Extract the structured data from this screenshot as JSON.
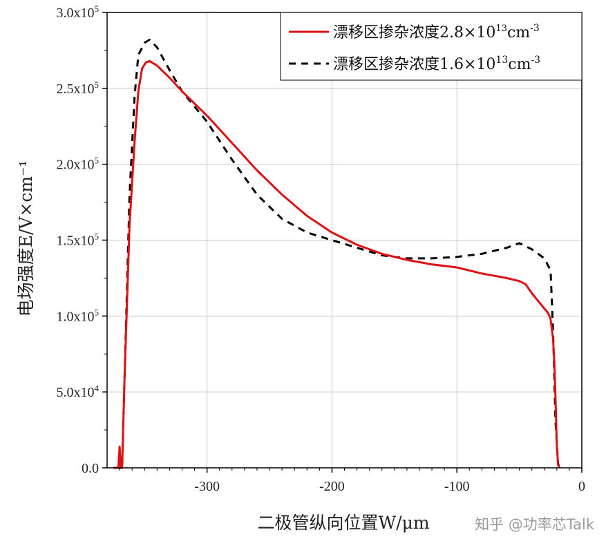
{
  "chart_data": {
    "type": "line",
    "xlabel": "二极管纵向位置W/μm",
    "ylabel": "电场强度E/V×cm⁻¹",
    "xlim": [
      -380,
      0
    ],
    "ylim": [
      0,
      300000
    ],
    "x_ticks": [
      -300,
      -200,
      -100,
      0
    ],
    "x_tick_labels": [
      "-300",
      "-200",
      "-100",
      "0"
    ],
    "y_ticks": [
      0,
      50000,
      100000,
      150000,
      200000,
      250000,
      300000
    ],
    "y_tick_labels": [
      {
        "base": "0.0",
        "exp": ""
      },
      {
        "base": "5.0x10",
        "exp": "4"
      },
      {
        "base": "1.0x10",
        "exp": "5"
      },
      {
        "base": "1.5x10",
        "exp": "5"
      },
      {
        "base": "2.0x10",
        "exp": "5"
      },
      {
        "base": "2.5x10",
        "exp": "5"
      },
      {
        "base": "3.0x10",
        "exp": "5"
      }
    ],
    "grid": true,
    "legend_position": "top-right",
    "series": [
      {
        "name": "漂移区掺杂浓度2.8×10¹³cm⁻³",
        "name_parts": {
          "text": "漂移区掺杂浓度2.8×10",
          "exp1": "13",
          "unit": "cm",
          "exp2": "-3"
        },
        "color": "#e01010",
        "style": "solid",
        "x": [
          -375,
          -371,
          -370,
          -369,
          -368,
          -366,
          -362,
          -358,
          -355,
          -352,
          -349,
          -346,
          -340,
          -330,
          -320,
          -300,
          -280,
          -260,
          -240,
          -220,
          -200,
          -180,
          -160,
          -140,
          -120,
          -100,
          -80,
          -60,
          -50,
          -45,
          -40,
          -35,
          -30,
          -27,
          -25,
          -23,
          -22,
          -21,
          -20,
          -19,
          -18
        ],
        "y": [
          0,
          0,
          14000,
          0,
          0,
          60000,
          160000,
          215000,
          248000,
          263000,
          267000,
          268000,
          265000,
          257000,
          248000,
          232000,
          214000,
          196000,
          180000,
          166000,
          155000,
          147000,
          141000,
          137000,
          134000,
          132000,
          128000,
          125000,
          123000,
          121000,
          115000,
          110000,
          105000,
          102000,
          98000,
          85000,
          70000,
          45000,
          15000,
          2000,
          0
        ]
      },
      {
        "name": "漂移区掺杂浓度1.6×10¹³cm⁻³",
        "name_parts": {
          "text": "漂移区掺杂浓度1.6×10",
          "exp1": "13",
          "unit": "cm",
          "exp2": "-3"
        },
        "color": "#000000",
        "style": "dashed",
        "x": [
          -375,
          -368,
          -366,
          -362,
          -358,
          -355,
          -350,
          -346,
          -340,
          -330,
          -320,
          -300,
          -280,
          -260,
          -240,
          -220,
          -200,
          -180,
          -160,
          -140,
          -120,
          -100,
          -80,
          -60,
          -50,
          -40,
          -30,
          -25,
          -23,
          -21,
          -19,
          -18
        ],
        "y": [
          0,
          0,
          60000,
          180000,
          245000,
          272000,
          280000,
          282000,
          277000,
          262000,
          248000,
          228000,
          203000,
          180000,
          164000,
          155000,
          150000,
          145000,
          140000,
          138000,
          138000,
          139000,
          141000,
          145000,
          148000,
          144000,
          138000,
          130000,
          90000,
          30000,
          3000,
          0
        ]
      }
    ]
  },
  "watermark": "知乎 @功率芯Talk"
}
